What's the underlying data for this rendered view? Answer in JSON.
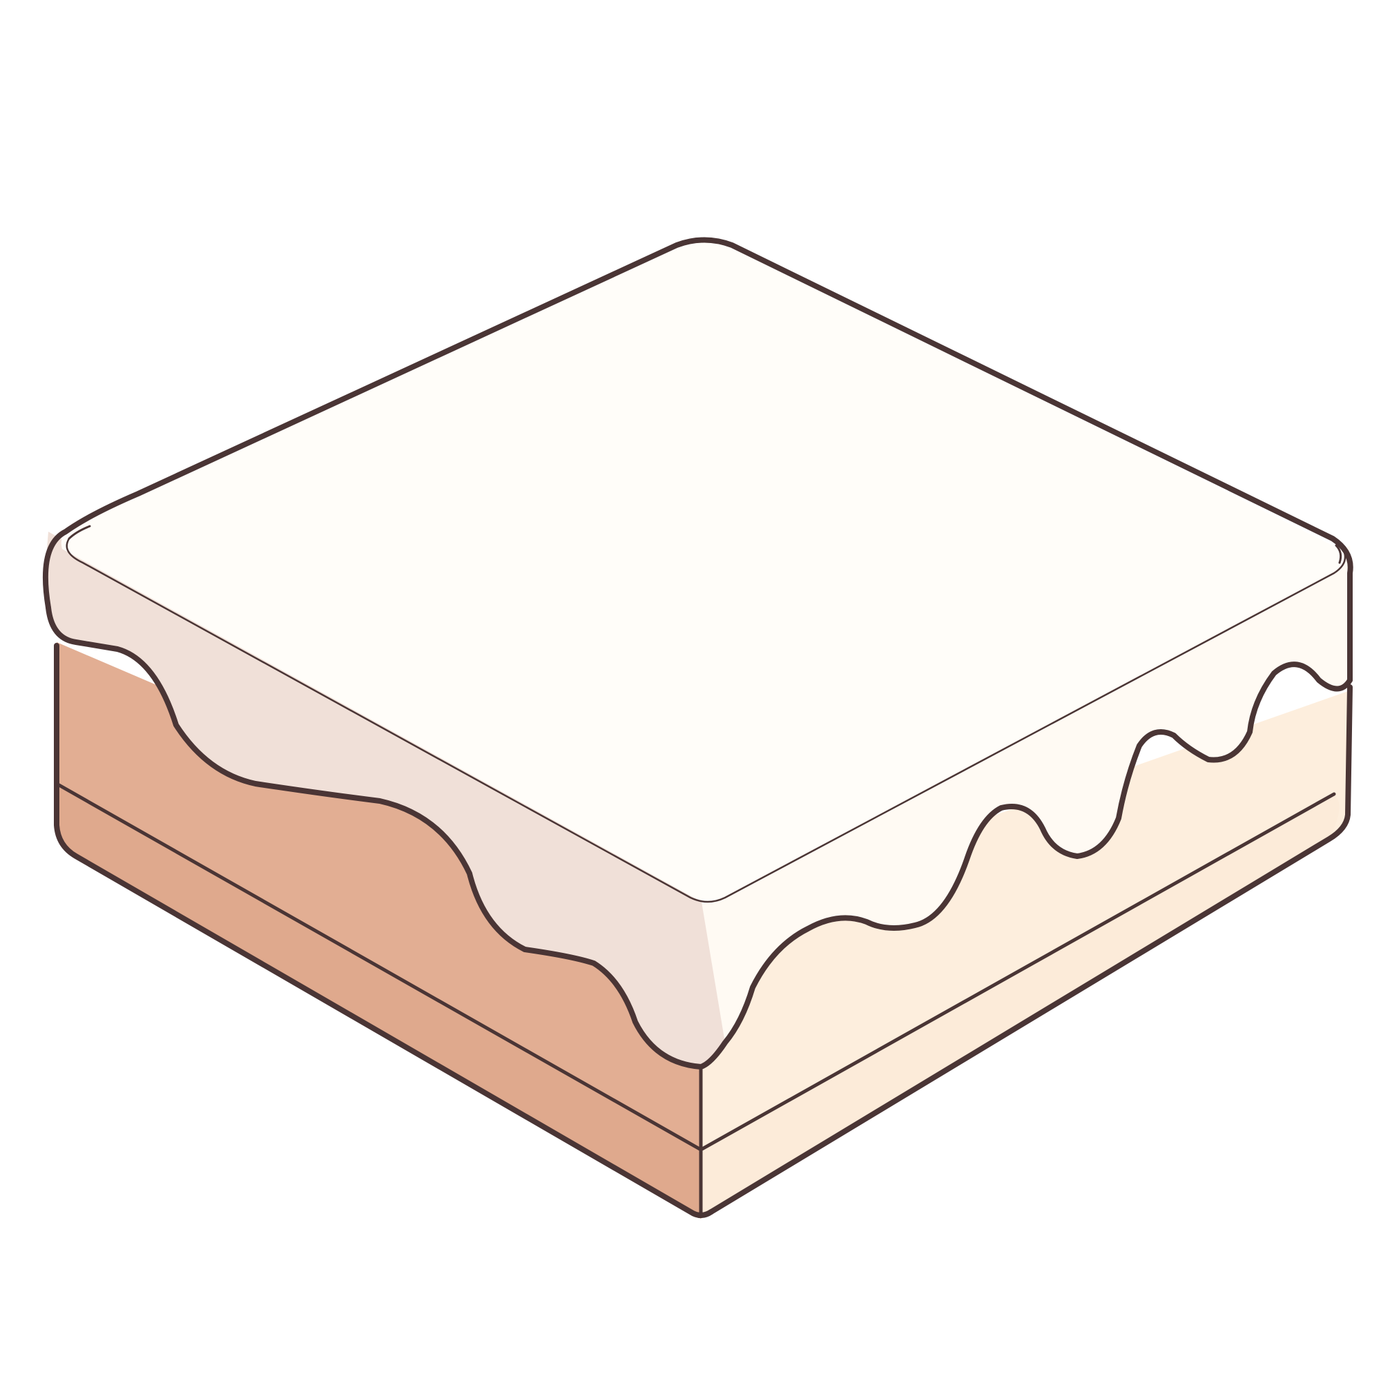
{
  "illustration": {
    "subject": "cake-slice-icon",
    "colors": {
      "background": "#ffffff",
      "outline": "#4a3535",
      "frosting_top": "#fffdf9",
      "frosting_left": "#f0e0d8",
      "frosting_right": "#fffaf3",
      "cake_left": "#e2ae93",
      "cake_right": "#fdeedd",
      "base_left": "#dfa98d",
      "base_right": "#fcebd9"
    }
  }
}
